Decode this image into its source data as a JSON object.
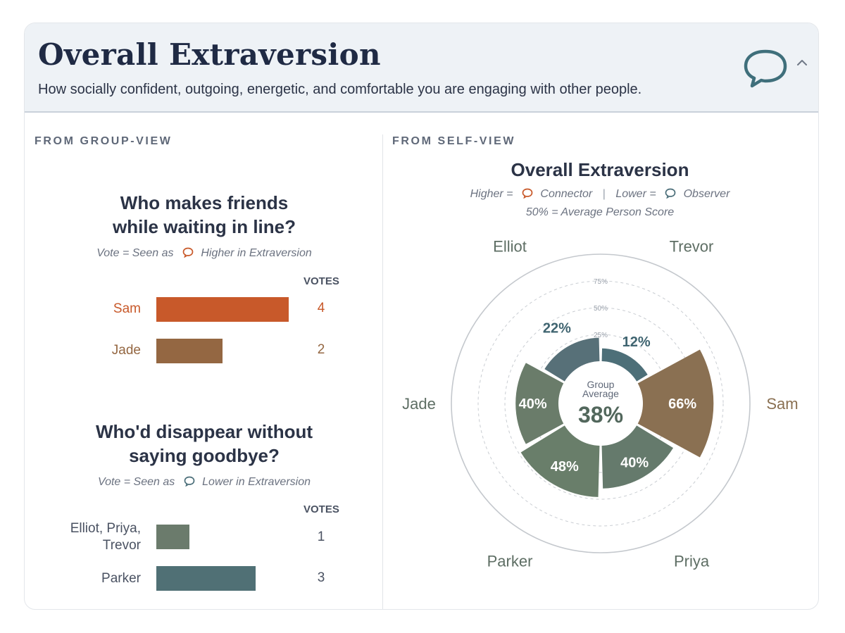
{
  "header": {
    "title": "Overall Extraversion",
    "subtitle": "How socially confident, outgoing, energetic, and comfortable you are engaging with other people.",
    "icon": "speech-bubble-icon",
    "collapse_icon": "chevron-up-icon"
  },
  "group_view": {
    "section_label": "FROM GROUP-VIEW",
    "questions": [
      {
        "title_line1": "Who makes friends",
        "title_line2": "while waiting in line?",
        "note_prefix": "Vote = Seen as",
        "note_suffix": "Higher in Extraversion",
        "note_icon": "connector-bubble-icon",
        "votes_label": "VOTES",
        "rows": [
          {
            "name": "Sam",
            "votes": 4,
            "color": "#c8592a"
          },
          {
            "name": "Jade",
            "votes": 2,
            "color": "#946742"
          }
        ]
      },
      {
        "title_line1": "Who'd disappear without",
        "title_line2": "saying goodbye?",
        "note_prefix": "Vote = Seen as",
        "note_suffix": "Lower in Extraversion",
        "note_icon": "observer-bubble-icon",
        "votes_label": "VOTES",
        "rows": [
          {
            "name": "Elliot, Priya,",
            "name2": "Trevor",
            "votes": 1,
            "color": "#6b7b6c"
          },
          {
            "name": "Parker",
            "votes": 3,
            "color": "#507075"
          }
        ]
      }
    ]
  },
  "self_view": {
    "section_label": "FROM SELF-VIEW",
    "legend": {
      "higher_prefix": "Higher =",
      "higher_label": "Connector",
      "separator": "|",
      "lower_prefix": "Lower =",
      "lower_label": "Observer",
      "average_note": "50% = Average Person Score"
    }
  },
  "colors": {
    "connector": "#c8592a",
    "observer": "#4c6f7a",
    "title": "#1f2a44"
  },
  "chart_data": {
    "type": "polar-bar",
    "title": "Overall Extraversion",
    "center_label_line1": "Group",
    "center_label_line2": "Average",
    "center_value": "38%",
    "group_average": 38,
    "rlim": [
      0,
      100
    ],
    "ring_ticks": [
      "25%",
      "50%",
      "75%"
    ],
    "ring_values": [
      25,
      50,
      75
    ],
    "series": [
      {
        "name": "Trevor",
        "value": 12,
        "label": "12%",
        "color": "#4d6f78"
      },
      {
        "name": "Sam",
        "value": 66,
        "label": "66%",
        "color": "#8a7052"
      },
      {
        "name": "Priya",
        "value": 40,
        "label": "40%",
        "color": "#657a6c"
      },
      {
        "name": "Parker",
        "value": 48,
        "label": "48%",
        "color": "#697e6a"
      },
      {
        "name": "Jade",
        "value": 40,
        "label": "40%",
        "color": "#6a7c6a"
      },
      {
        "name": "Elliot",
        "value": 22,
        "label": "22%",
        "color": "#577078"
      }
    ]
  }
}
